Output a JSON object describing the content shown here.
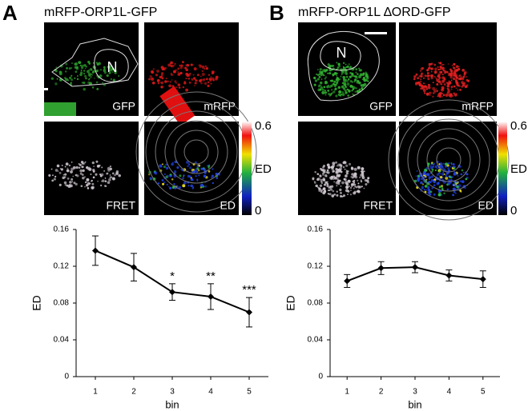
{
  "figure": {
    "panels": [
      {
        "letter": "A",
        "title": "mRFP-ORP1L-GFP",
        "nucleus": "N",
        "images": [
          "GFP",
          "mRFP",
          "FRET",
          "ED"
        ],
        "rings": [
          "1",
          "2",
          "3",
          "4",
          "5"
        ],
        "colorbar": {
          "max": 0.6,
          "label": "ED",
          "min": 0
        }
      },
      {
        "letter": "B",
        "title": "mRFP-ORP1L ∆ORD-GFP",
        "nucleus": "N",
        "images": [
          "GFP",
          "mRFP",
          "FRET",
          "ED"
        ],
        "rings": [
          "1",
          "2",
          "3",
          "4",
          "5"
        ],
        "colorbar": {
          "max": 0.6,
          "label": "ED",
          "min": 0
        }
      }
    ]
  },
  "chart_data": [
    {
      "type": "line",
      "x_label": "bin",
      "y_label": "ED",
      "color": "#000000",
      "x": [
        1,
        2,
        3,
        4,
        5
      ],
      "values": [
        0.137,
        0.119,
        0.092,
        0.087,
        0.07
      ],
      "errors": [
        0.016,
        0.015,
        0.009,
        0.014,
        0.016
      ],
      "xlim": [
        0.5,
        5.5
      ],
      "xticks": [
        1,
        2,
        3,
        4,
        5
      ],
      "ylim": [
        0,
        0.16
      ],
      "yticks": [
        0,
        0.04,
        0.08,
        0.12,
        0.16
      ],
      "annotations": [
        {
          "x": 3,
          "text": "*"
        },
        {
          "x": 4,
          "text": "**"
        },
        {
          "x": 5,
          "text": "***"
        }
      ]
    },
    {
      "type": "line",
      "x_label": "bin",
      "y_label": "ED",
      "color": "#000000",
      "x": [
        1,
        2,
        3,
        4,
        5
      ],
      "values": [
        0.104,
        0.118,
        0.119,
        0.11,
        0.106
      ],
      "errors": [
        0.007,
        0.007,
        0.006,
        0.006,
        0.009
      ],
      "xlim": [
        0.5,
        5.5
      ],
      "xticks": [
        1,
        2,
        3,
        4,
        5
      ],
      "ylim": [
        0,
        0.16
      ],
      "yticks": [
        0,
        0.04,
        0.08,
        0.12,
        0.16
      ]
    }
  ]
}
